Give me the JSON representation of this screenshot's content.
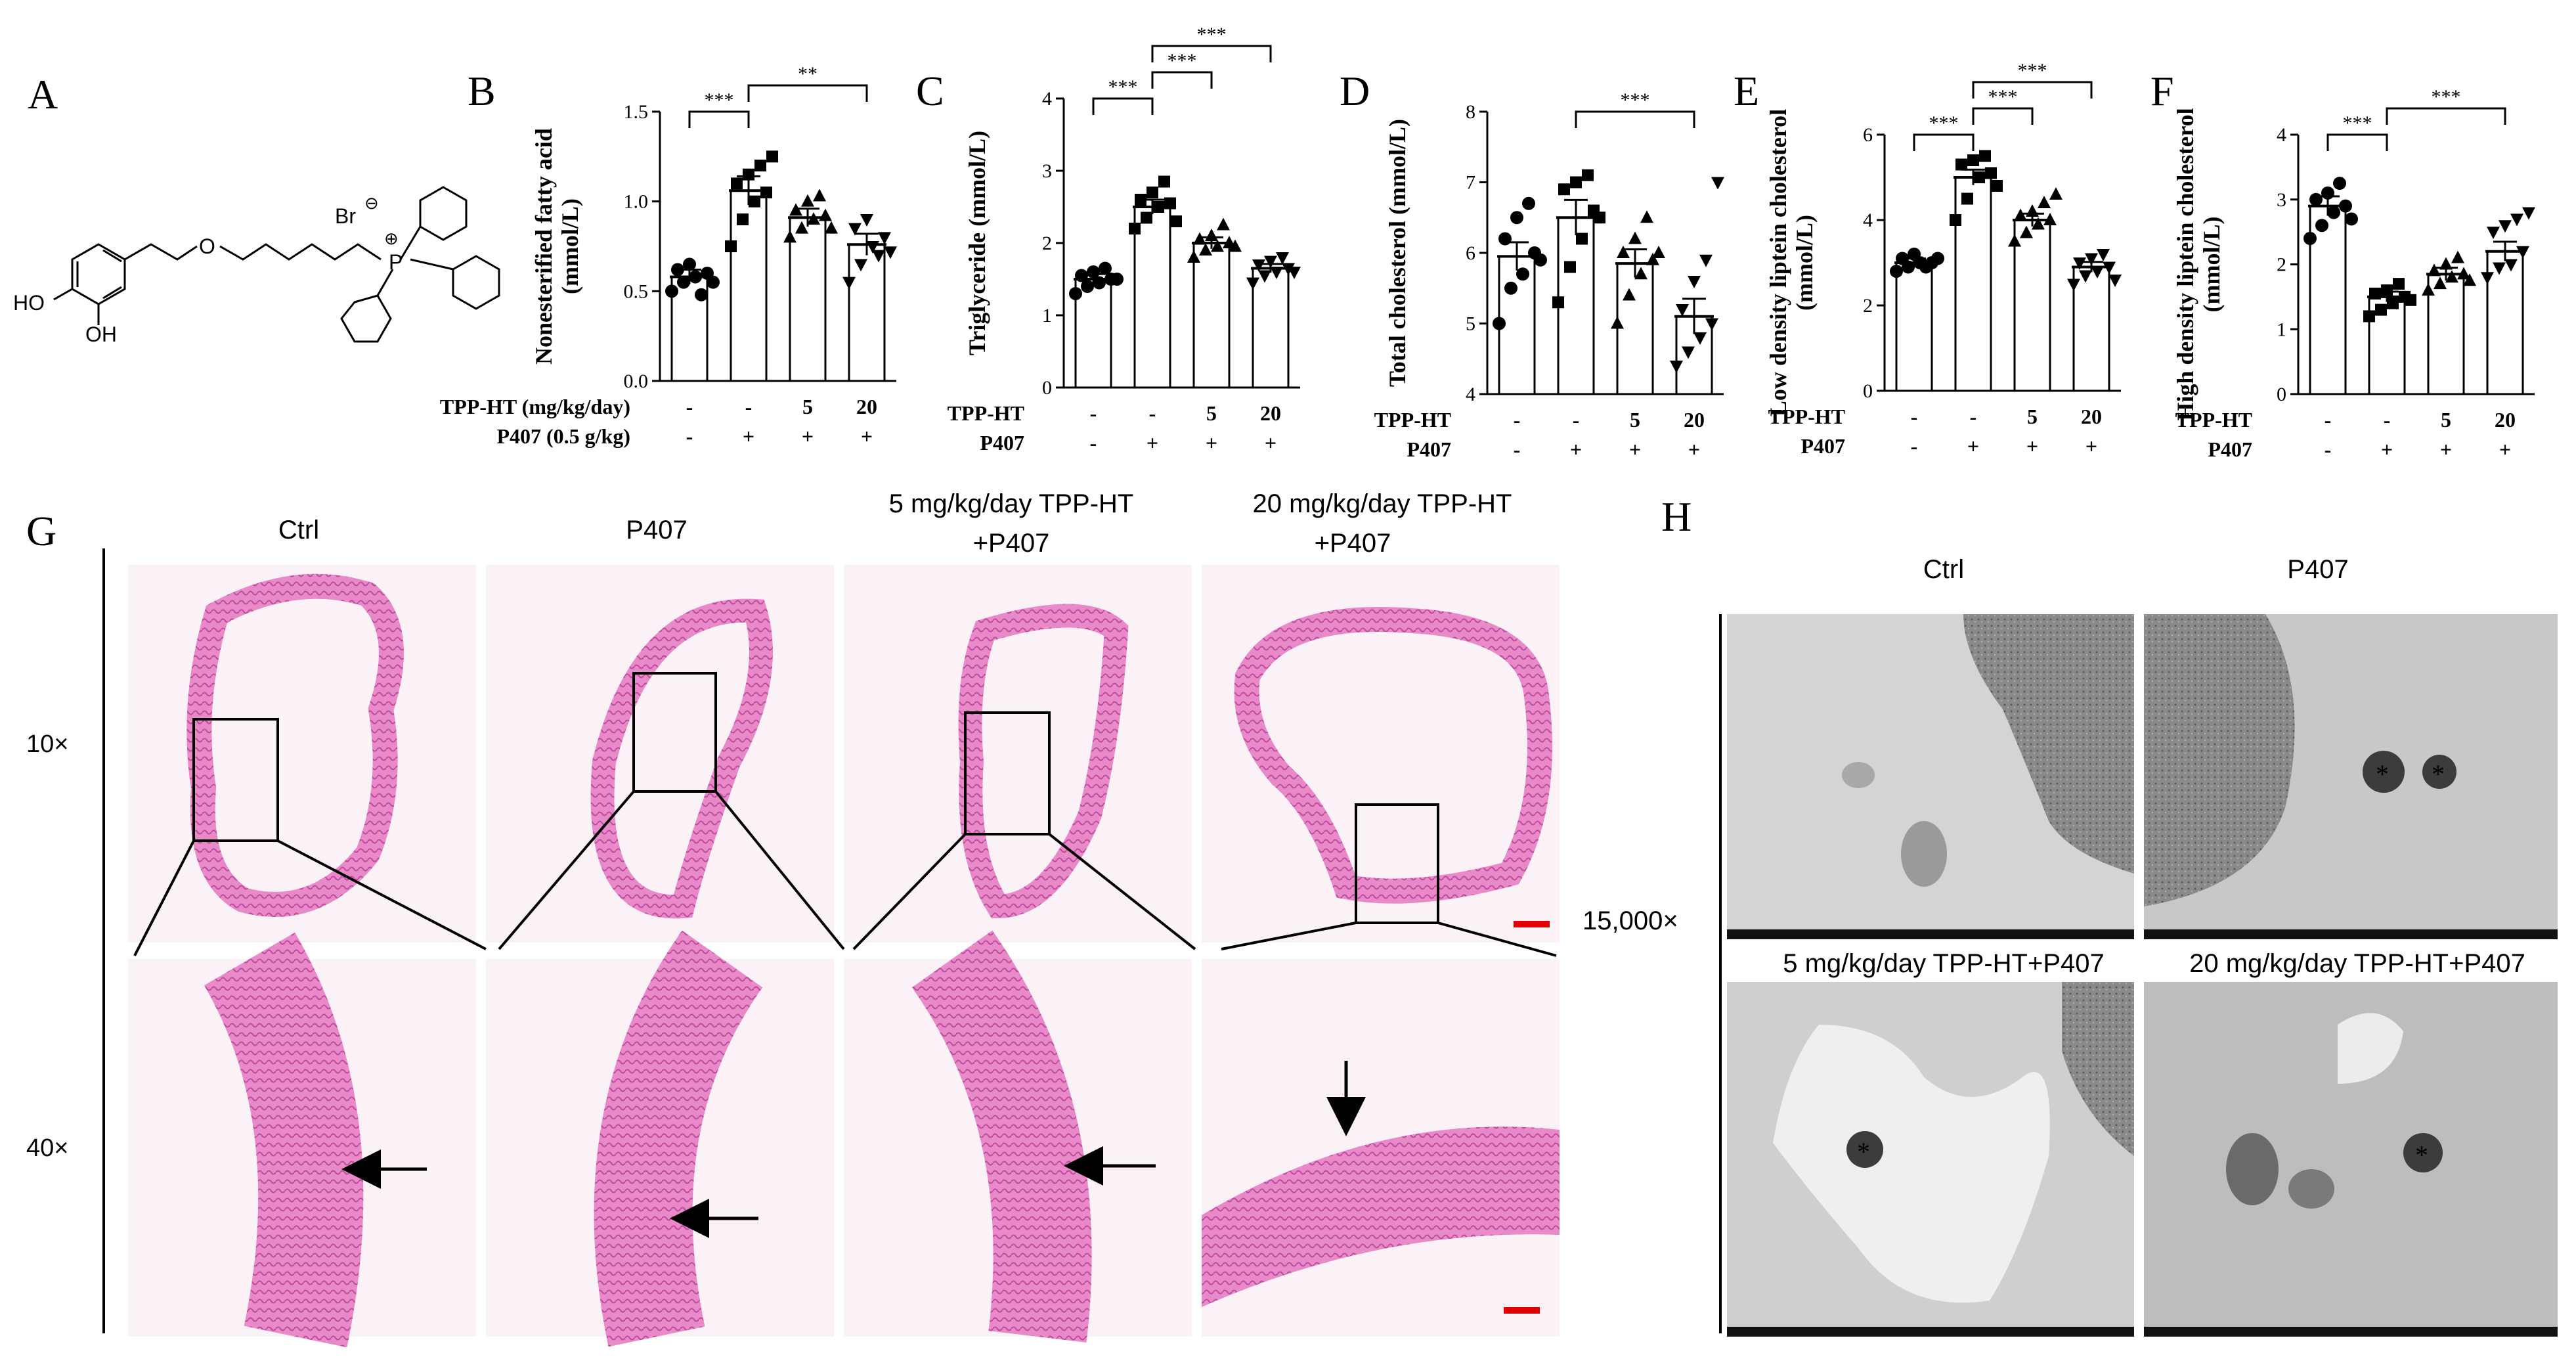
{
  "figure": {
    "panel_letters": [
      "A",
      "B",
      "C",
      "D",
      "E",
      "F",
      "G",
      "H"
    ],
    "panel_a": {
      "atom_labels": [
        "HO",
        "OH",
        "O",
        "Br",
        "⊖",
        "P",
        "⊕"
      ]
    },
    "panel_g": {
      "columns": [
        "Ctrl",
        "P407",
        "5 mg/kg/day TPP-HT",
        "+P407",
        "20 mg/kg/day TPP-HT",
        "+P407"
      ],
      "rows": [
        "10×",
        "40×"
      ],
      "scale_bar_color": "#e00000"
    },
    "panel_h": {
      "columns_top": [
        "Ctrl",
        "P407"
      ],
      "columns_bottom": [
        "5 mg/kg/day TPP-HT+P407",
        "20 mg/kg/day TPP-HT+P407"
      ],
      "magnification": "15,000×",
      "marker": "*"
    }
  },
  "chart_data": [
    {
      "panel": "B",
      "type": "bar",
      "ylabel": "Nonesterified fatty acid (mmol/L)",
      "ylabel_lines": [
        "Nonesterified fatty acid",
        "(mmol/L)"
      ],
      "ylim": [
        0,
        1.5
      ],
      "yticks": [
        "0.0",
        "0.5",
        "1.0",
        "1.5"
      ],
      "treatment_rows": [
        {
          "label": "TPP-HT (mg/kg/day)",
          "values": [
            "-",
            "-",
            "5",
            "20"
          ]
        },
        {
          "label": "P407 (0.5 g/kg)",
          "values": [
            "-",
            "+",
            "+",
            "+"
          ]
        }
      ],
      "values": [
        0.58,
        1.06,
        0.91,
        0.76
      ],
      "sem": [
        0.04,
        0.08,
        0.05,
        0.06
      ],
      "markers": [
        "circle",
        "square",
        "triangle",
        "triangle-down"
      ],
      "points": [
        [
          0.5,
          0.55,
          0.58,
          0.6,
          0.62,
          0.65,
          0.48,
          0.55
        ],
        [
          0.75,
          0.9,
          1.0,
          1.05,
          1.1,
          1.15,
          1.2,
          1.25
        ],
        [
          0.8,
          0.85,
          0.9,
          0.92,
          0.95,
          1.0,
          1.03,
          0.85
        ],
        [
          0.55,
          0.65,
          0.75,
          0.8,
          0.85,
          0.9,
          0.7,
          0.72
        ]
      ],
      "significance": [
        {
          "from": 0,
          "to": 1,
          "label": "***"
        },
        {
          "from": 1,
          "to": 3,
          "label": "**"
        }
      ]
    },
    {
      "panel": "C",
      "type": "bar",
      "ylabel": "Triglyceride (mmol/L)",
      "ylabel_lines": [
        "Triglyceride (mmol/L)"
      ],
      "ylim": [
        0,
        4
      ],
      "yticks": [
        "0",
        "1",
        "2",
        "3",
        "4"
      ],
      "treatment_rows": [
        {
          "label": "TPP-HT",
          "values": [
            "-",
            "-",
            "5",
            "20"
          ]
        },
        {
          "label": "P407",
          "values": [
            "-",
            "+",
            "+",
            "+"
          ]
        }
      ],
      "values": [
        1.5,
        2.5,
        2.0,
        1.65
      ],
      "sem": [
        0.07,
        0.1,
        0.08,
        0.06
      ],
      "markers": [
        "circle",
        "square",
        "triangle",
        "triangle-down"
      ],
      "points": [
        [
          1.3,
          1.4,
          1.45,
          1.5,
          1.55,
          1.6,
          1.65,
          1.5
        ],
        [
          2.2,
          2.35,
          2.5,
          2.55,
          2.6,
          2.7,
          2.85,
          2.3
        ],
        [
          1.8,
          1.9,
          1.95,
          2.0,
          2.05,
          2.1,
          2.25,
          1.95
        ],
        [
          1.45,
          1.55,
          1.6,
          1.65,
          1.7,
          1.75,
          1.8,
          1.6
        ]
      ],
      "significance": [
        {
          "from": 0,
          "to": 1,
          "label": "***"
        },
        {
          "from": 1,
          "to": 2,
          "label": "***"
        },
        {
          "from": 1,
          "to": 3,
          "label": "***"
        }
      ]
    },
    {
      "panel": "D",
      "type": "bar",
      "ylabel": "Total cholesterol (mmol/L)",
      "ylabel_lines": [
        "Total cholesterol (mmol/L)"
      ],
      "ylim": [
        4,
        8
      ],
      "yticks": [
        "4",
        "5",
        "6",
        "7",
        "8"
      ],
      "treatment_rows": [
        {
          "label": "TPP-HT",
          "values": [
            "-",
            "-",
            "5",
            "20"
          ]
        },
        {
          "label": "P407",
          "values": [
            "-",
            "+",
            "+",
            "+"
          ]
        }
      ],
      "values": [
        5.95,
        6.5,
        5.85,
        5.1
      ],
      "sem": [
        0.2,
        0.25,
        0.2,
        0.25
      ],
      "markers": [
        "circle",
        "square",
        "triangle",
        "triangle-down"
      ],
      "points": [
        [
          5.0,
          5.5,
          5.7,
          6.0,
          6.2,
          6.5,
          6.7,
          5.9
        ],
        [
          5.3,
          5.8,
          6.2,
          6.6,
          6.9,
          7.0,
          7.1,
          6.5
        ],
        [
          5.0,
          5.4,
          5.7,
          5.9,
          6.0,
          6.2,
          6.5,
          6.0
        ],
        [
          4.4,
          4.6,
          4.8,
          5.0,
          5.2,
          5.6,
          5.9,
          7.0
        ]
      ],
      "significance": [
        {
          "from": 1,
          "to": 3,
          "label": "***"
        }
      ]
    },
    {
      "panel": "E",
      "type": "bar",
      "ylabel": "Low density liptein cholesterol (mmol/L)",
      "ylabel_lines": [
        "Low density liptein cholesterol",
        "(mmol/L)"
      ],
      "ylim": [
        0,
        6
      ],
      "yticks": [
        "0",
        "2",
        "4",
        "6"
      ],
      "treatment_rows": [
        {
          "label": "TPP-HT",
          "values": [
            "-",
            "-",
            "5",
            "20"
          ]
        },
        {
          "label": "P407",
          "values": [
            "-",
            "+",
            "+",
            "+"
          ]
        }
      ],
      "values": [
        3.0,
        5.0,
        4.0,
        2.9
      ],
      "sem": [
        0.1,
        0.18,
        0.15,
        0.12
      ],
      "markers": [
        "circle",
        "square",
        "triangle",
        "triangle-down"
      ],
      "points": [
        [
          2.8,
          2.9,
          3.0,
          3.0,
          3.1,
          3.2,
          2.9,
          3.1
        ],
        [
          4.0,
          4.5,
          5.0,
          5.1,
          5.3,
          5.4,
          5.5,
          4.8
        ],
        [
          3.5,
          3.7,
          3.9,
          4.0,
          4.1,
          4.2,
          4.4,
          4.6
        ],
        [
          2.5,
          2.7,
          2.8,
          2.9,
          3.0,
          3.1,
          3.2,
          2.6
        ]
      ],
      "significance": [
        {
          "from": 0,
          "to": 1,
          "label": "***"
        },
        {
          "from": 1,
          "to": 2,
          "label": "***"
        },
        {
          "from": 1,
          "to": 3,
          "label": "***"
        }
      ]
    },
    {
      "panel": "F",
      "type": "bar",
      "ylabel": "High density liptein cholesterol (mmol/L)",
      "ylabel_lines": [
        "High density liptein cholesterol",
        "(mmol/L)"
      ],
      "ylim": [
        0,
        4
      ],
      "yticks": [
        "0",
        "1",
        "2",
        "3",
        "4"
      ],
      "treatment_rows": [
        {
          "label": "TPP-HT",
          "values": [
            "-",
            "-",
            "5",
            "20"
          ]
        },
        {
          "label": "P407",
          "values": [
            "-",
            "+",
            "+",
            "+"
          ]
        }
      ],
      "values": [
        2.9,
        1.5,
        1.85,
        2.2
      ],
      "sem": [
        0.15,
        0.08,
        0.1,
        0.15
      ],
      "markers": [
        "circle",
        "square",
        "triangle",
        "triangle-down"
      ],
      "points": [
        [
          2.4,
          2.6,
          2.8,
          2.9,
          3.0,
          3.1,
          3.25,
          2.7
        ],
        [
          1.2,
          1.3,
          1.4,
          1.5,
          1.55,
          1.6,
          1.7,
          1.45
        ],
        [
          1.6,
          1.7,
          1.8,
          1.85,
          1.9,
          2.0,
          2.1,
          1.75
        ],
        [
          1.8,
          1.95,
          2.0,
          2.2,
          2.5,
          2.6,
          2.7,
          2.8
        ]
      ],
      "significance": [
        {
          "from": 0,
          "to": 1,
          "label": "***"
        },
        {
          "from": 1,
          "to": 3,
          "label": "***"
        }
      ]
    }
  ]
}
